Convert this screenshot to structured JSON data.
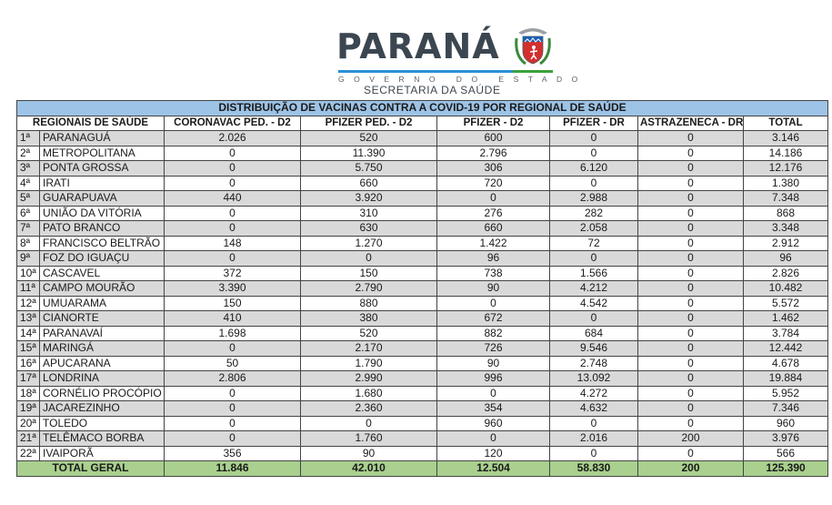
{
  "header": {
    "brand": "PARANÁ",
    "subtitle": "GOVERNO DO ESTADO",
    "department": "SECRETARIA DA SAÚDE",
    "crest_icon": "parana-coat-of-arms-icon",
    "colors": {
      "brand_text": "#3b4650",
      "bar_blue": "#2b8fd6",
      "bar_green": "#3aa23a"
    }
  },
  "table": {
    "title": "DISTRIBUIÇÃO DE VACINAS CONTRA A COVID-19 POR REGIONAL DE SAÚDE",
    "columns": [
      "REGIONAIS DE SAÚDE",
      "CORONAVAC PED. - D2",
      "PFIZER PED. - D2",
      "PFIZER  - D2",
      "PFIZER - DR",
      "ASTRAZENECA - DR",
      "TOTAL"
    ],
    "colors": {
      "title_bg": "#9dc3e6",
      "stripe_bg": "#d9d9d9",
      "total_bg": "#a9d08e"
    },
    "rows": [
      {
        "num": "1ª",
        "name": "PARANAGUÁ",
        "coronavac_ped_d2": "2.026",
        "pfizer_ped_d2": "520",
        "pfizer_d2": "600",
        "pfizer_dr": "0",
        "astrazeneca_dr": "0",
        "total": "3.146"
      },
      {
        "num": "2ª",
        "name": "METROPOLITANA",
        "coronavac_ped_d2": "0",
        "pfizer_ped_d2": "11.390",
        "pfizer_d2": "2.796",
        "pfizer_dr": "0",
        "astrazeneca_dr": "0",
        "total": "14.186"
      },
      {
        "num": "3ª",
        "name": "PONTA GROSSA",
        "coronavac_ped_d2": "0",
        "pfizer_ped_d2": "5.750",
        "pfizer_d2": "306",
        "pfizer_dr": "6.120",
        "astrazeneca_dr": "0",
        "total": "12.176"
      },
      {
        "num": "4ª",
        "name": "IRATI",
        "coronavac_ped_d2": "0",
        "pfizer_ped_d2": "660",
        "pfizer_d2": "720",
        "pfizer_dr": "0",
        "astrazeneca_dr": "0",
        "total": "1.380"
      },
      {
        "num": "5ª",
        "name": "GUARAPUAVA",
        "coronavac_ped_d2": "440",
        "pfizer_ped_d2": "3.920",
        "pfizer_d2": "0",
        "pfizer_dr": "2.988",
        "astrazeneca_dr": "0",
        "total": "7.348"
      },
      {
        "num": "6ª",
        "name": "UNIÃO DA VITÓRIA",
        "coronavac_ped_d2": "0",
        "pfizer_ped_d2": "310",
        "pfizer_d2": "276",
        "pfizer_dr": "282",
        "astrazeneca_dr": "0",
        "total": "868"
      },
      {
        "num": "7ª",
        "name": "PATO BRANCO",
        "coronavac_ped_d2": "0",
        "pfizer_ped_d2": "630",
        "pfizer_d2": "660",
        "pfizer_dr": "2.058",
        "astrazeneca_dr": "0",
        "total": "3.348"
      },
      {
        "num": "8ª",
        "name": "FRANCISCO BELTRÃO",
        "coronavac_ped_d2": "148",
        "pfizer_ped_d2": "1.270",
        "pfizer_d2": "1.422",
        "pfizer_dr": "72",
        "astrazeneca_dr": "0",
        "total": "2.912"
      },
      {
        "num": "9ª",
        "name": "FOZ DO IGUAÇU",
        "coronavac_ped_d2": "0",
        "pfizer_ped_d2": "0",
        "pfizer_d2": "96",
        "pfizer_dr": "0",
        "astrazeneca_dr": "0",
        "total": "96"
      },
      {
        "num": "10ª",
        "name": "CASCAVEL",
        "coronavac_ped_d2": "372",
        "pfizer_ped_d2": "150",
        "pfizer_d2": "738",
        "pfizer_dr": "1.566",
        "astrazeneca_dr": "0",
        "total": "2.826"
      },
      {
        "num": "11ª",
        "name": "CAMPO MOURÃO",
        "coronavac_ped_d2": "3.390",
        "pfizer_ped_d2": "2.790",
        "pfizer_d2": "90",
        "pfizer_dr": "4.212",
        "astrazeneca_dr": "0",
        "total": "10.482"
      },
      {
        "num": "12ª",
        "name": "UMUARAMA",
        "coronavac_ped_d2": "150",
        "pfizer_ped_d2": "880",
        "pfizer_d2": "0",
        "pfizer_dr": "4.542",
        "astrazeneca_dr": "0",
        "total": "5.572"
      },
      {
        "num": "13ª",
        "name": "CIANORTE",
        "coronavac_ped_d2": "410",
        "pfizer_ped_d2": "380",
        "pfizer_d2": "672",
        "pfizer_dr": "0",
        "astrazeneca_dr": "0",
        "total": "1.462"
      },
      {
        "num": "14ª",
        "name": "PARANAVAÍ",
        "coronavac_ped_d2": "1.698",
        "pfizer_ped_d2": "520",
        "pfizer_d2": "882",
        "pfizer_dr": "684",
        "astrazeneca_dr": "0",
        "total": "3.784"
      },
      {
        "num": "15ª",
        "name": "MARINGÁ",
        "coronavac_ped_d2": "0",
        "pfizer_ped_d2": "2.170",
        "pfizer_d2": "726",
        "pfizer_dr": "9.546",
        "astrazeneca_dr": "0",
        "total": "12.442"
      },
      {
        "num": "16ª",
        "name": "APUCARANA",
        "coronavac_ped_d2": "50",
        "pfizer_ped_d2": "1.790",
        "pfizer_d2": "90",
        "pfizer_dr": "2.748",
        "astrazeneca_dr": "0",
        "total": "4.678"
      },
      {
        "num": "17ª",
        "name": "LONDRINA",
        "coronavac_ped_d2": "2.806",
        "pfizer_ped_d2": "2.990",
        "pfizer_d2": "996",
        "pfizer_dr": "13.092",
        "astrazeneca_dr": "0",
        "total": "19.884"
      },
      {
        "num": "18ª",
        "name": "CORNÉLIO PROCÓPIO",
        "coronavac_ped_d2": "0",
        "pfizer_ped_d2": "1.680",
        "pfizer_d2": "0",
        "pfizer_dr": "4.272",
        "astrazeneca_dr": "0",
        "total": "5.952"
      },
      {
        "num": "19ª",
        "name": "JACAREZINHO",
        "coronavac_ped_d2": "0",
        "pfizer_ped_d2": "2.360",
        "pfizer_d2": "354",
        "pfizer_dr": "4.632",
        "astrazeneca_dr": "0",
        "total": "7.346"
      },
      {
        "num": "20ª",
        "name": "TOLEDO",
        "coronavac_ped_d2": "0",
        "pfizer_ped_d2": "0",
        "pfizer_d2": "960",
        "pfizer_dr": "0",
        "astrazeneca_dr": "0",
        "total": "960"
      },
      {
        "num": "21ª",
        "name": "TELÊMACO BORBA",
        "coronavac_ped_d2": "0",
        "pfizer_ped_d2": "1.760",
        "pfizer_d2": "0",
        "pfizer_dr": "2.016",
        "astrazeneca_dr": "200",
        "total": "3.976"
      },
      {
        "num": "22ª",
        "name": "IVAIPORÃ",
        "coronavac_ped_d2": "356",
        "pfizer_ped_d2": "90",
        "pfizer_d2": "120",
        "pfizer_dr": "0",
        "astrazeneca_dr": "0",
        "total": "566"
      }
    ],
    "total": {
      "label": "TOTAL GERAL",
      "coronavac_ped_d2": "11.846",
      "pfizer_ped_d2": "42.010",
      "pfizer_d2": "12.504",
      "pfizer_dr": "58.830",
      "astrazeneca_dr": "200",
      "total": "125.390"
    }
  }
}
